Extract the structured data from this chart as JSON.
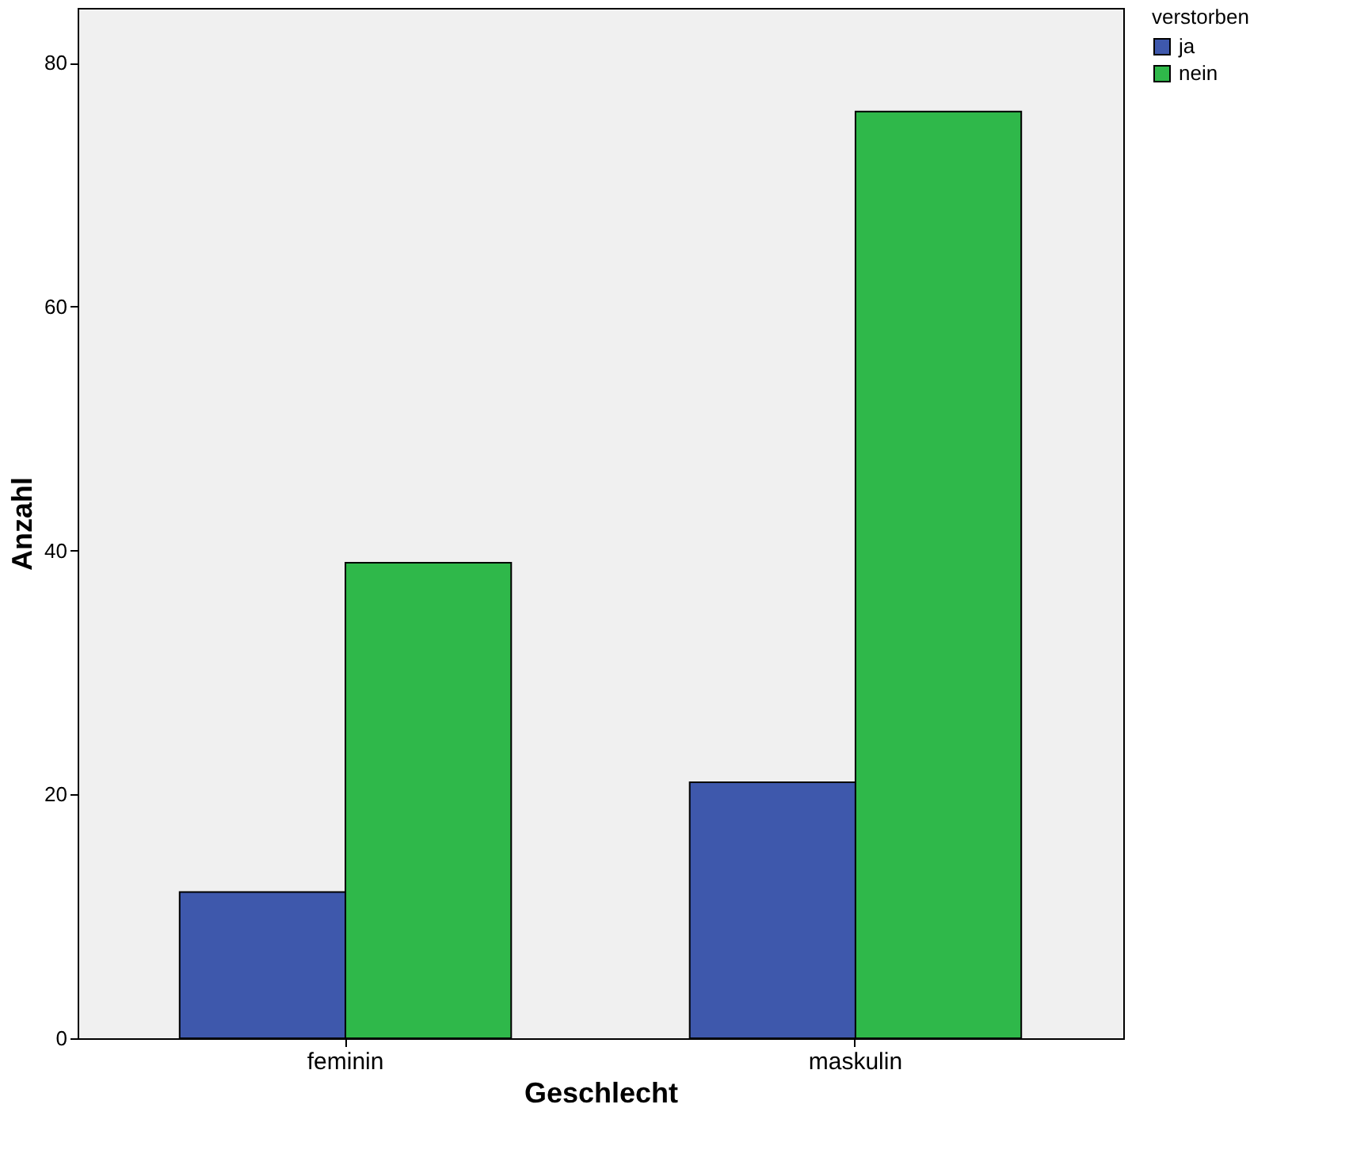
{
  "chart_data": {
    "type": "bar",
    "xlabel": "Geschlecht",
    "ylabel": "Anzahl",
    "legend_title": "verstorben",
    "categories": [
      "feminin",
      "maskulin"
    ],
    "series": [
      {
        "name": "ja",
        "color": "#3e58ac",
        "values": [
          12,
          21
        ]
      },
      {
        "name": "nein",
        "color": "#2fb84a",
        "values": [
          39,
          76
        ]
      }
    ],
    "ylim": [
      0,
      84.5
    ],
    "yticks": [
      0,
      20,
      40,
      60,
      80
    ],
    "grid": false,
    "legend": "top right"
  }
}
